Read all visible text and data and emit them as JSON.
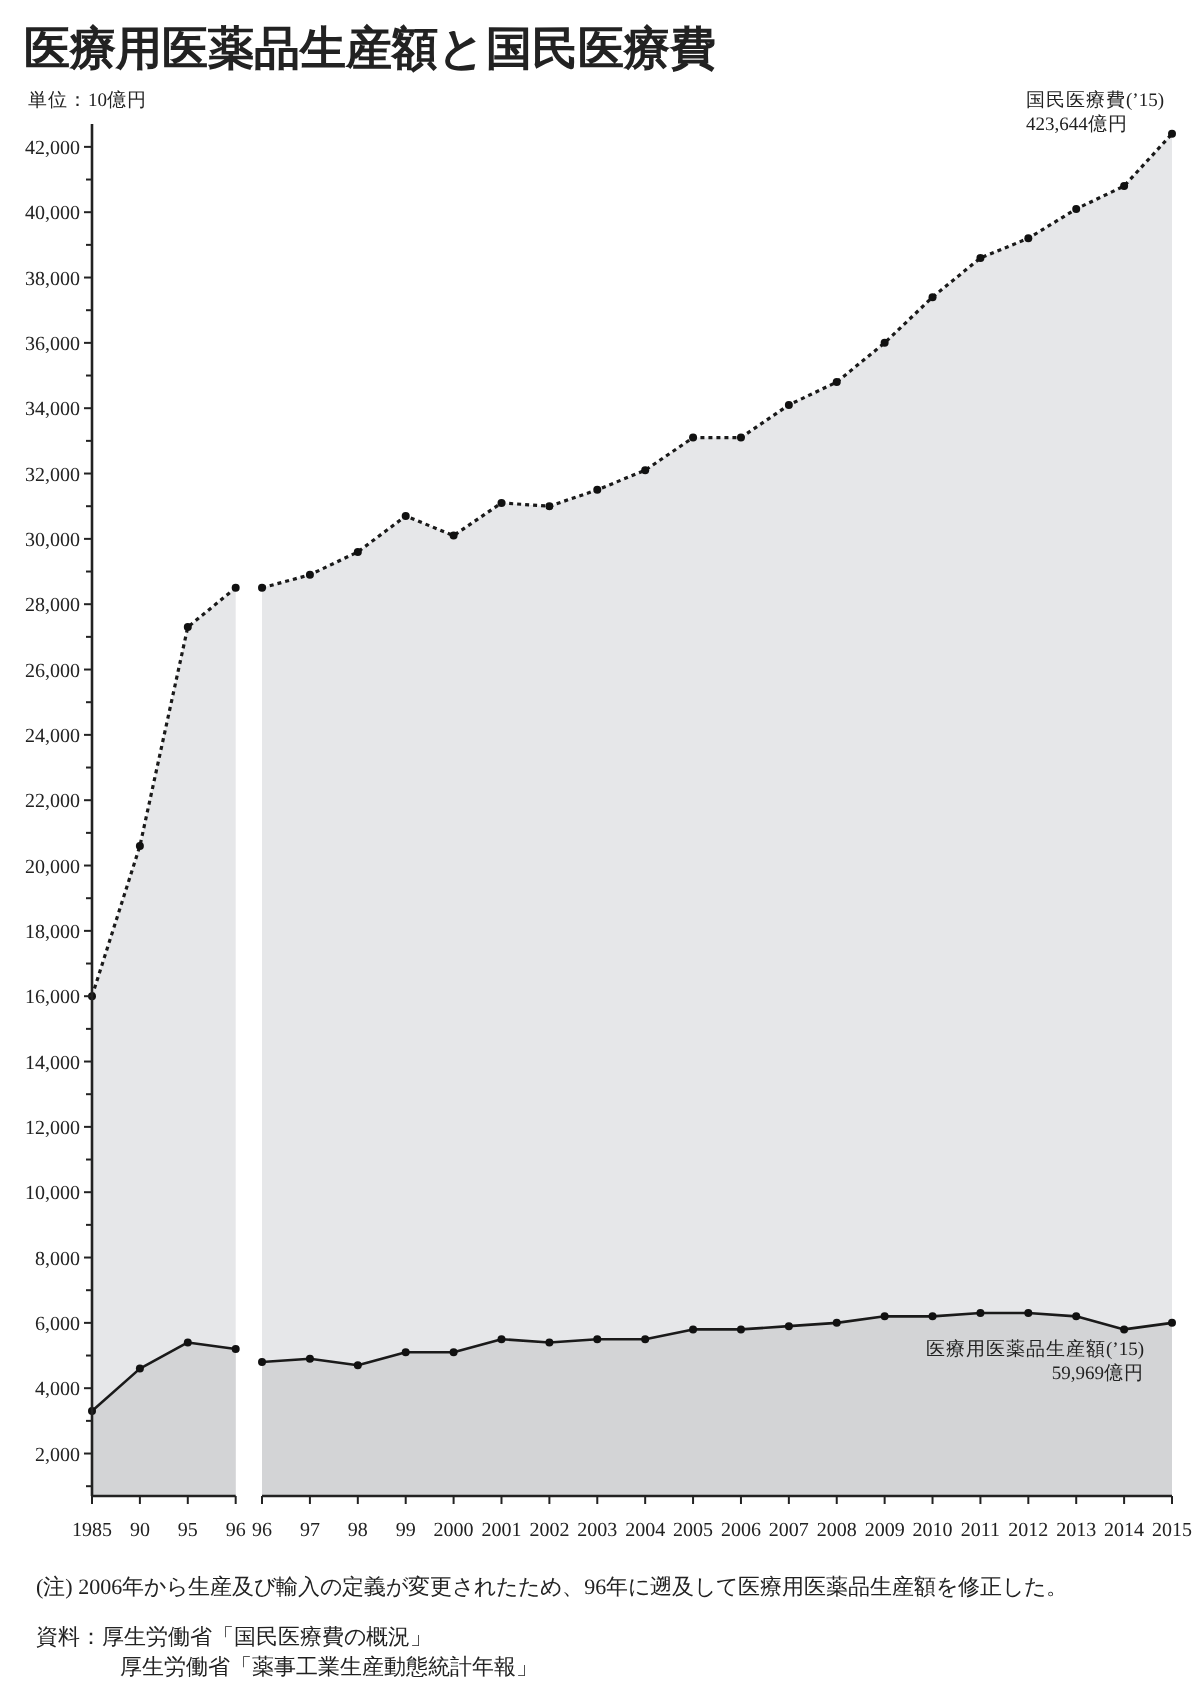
{
  "chart_data": {
    "type": "area",
    "title": "医療用医薬品生産額と国民医療費",
    "ylabel": "単位：10億円",
    "categories": [
      "1985",
      "90",
      "95",
      "96",
      "96",
      "97",
      "98",
      "99",
      "2000",
      "2001",
      "2002",
      "2003",
      "2004",
      "2005",
      "2006",
      "2007",
      "2008",
      "2009",
      "2010",
      "2011",
      "2012",
      "2013",
      "2014",
      "2015"
    ],
    "series": [
      {
        "color": "#e6e7e9",
        "line_style": "dotted",
        "values": [
          16000,
          20600,
          27300,
          28500,
          28500,
          28900,
          29600,
          30700,
          30100,
          31100,
          31000,
          31500,
          32100,
          33100,
          33100,
          34100,
          34800,
          36000,
          37400,
          38600,
          39200,
          40100,
          40800,
          42400
        ]
      },
      {
        "color": "#d3d4d6",
        "line_style": "solid",
        "values": [
          3300,
          4600,
          5400,
          5200,
          4800,
          4900,
          4700,
          5100,
          5100,
          5500,
          5400,
          5500,
          5500,
          5800,
          5800,
          5900,
          6000,
          6200,
          6200,
          6300,
          6300,
          6200,
          5800,
          6000
        ]
      }
    ],
    "ylim": [
      700,
      42700
    ],
    "yticks": [
      {
        "value": 1000,
        "label": null
      },
      {
        "value": 2000,
        "label": "2,000"
      },
      {
        "value": 3000,
        "label": null
      },
      {
        "value": 4000,
        "label": "4,000"
      },
      {
        "value": 5000,
        "label": null
      },
      {
        "value": 6000,
        "label": "6,000"
      },
      {
        "value": 7000,
        "label": null
      },
      {
        "value": 8000,
        "label": "8,000"
      },
      {
        "value": 9000,
        "label": null
      },
      {
        "value": 10000,
        "label": "10,000"
      },
      {
        "value": 11000,
        "label": null
      },
      {
        "value": 12000,
        "label": "12,000"
      },
      {
        "value": 13000,
        "label": null
      },
      {
        "value": 14000,
        "label": "14,000"
      },
      {
        "value": 15000,
        "label": null
      },
      {
        "value": 16000,
        "label": "16,000"
      },
      {
        "value": 17000,
        "label": null
      },
      {
        "value": 18000,
        "label": "18,000"
      },
      {
        "value": 19000,
        "label": null
      },
      {
        "value": 20000,
        "label": "20,000"
      },
      {
        "value": 21000,
        "label": null
      },
      {
        "value": 22000,
        "label": "22,000"
      },
      {
        "value": 23000,
        "label": null
      },
      {
        "value": 24000,
        "label": "24,000"
      },
      {
        "value": 25000,
        "label": null
      },
      {
        "value": 26000,
        "label": "26,000"
      },
      {
        "value": 27000,
        "label": null
      },
      {
        "value": 28000,
        "label": "28,000"
      },
      {
        "value": 29000,
        "label": null
      },
      {
        "value": 30000,
        "label": "30,000"
      },
      {
        "value": 31000,
        "label": null
      },
      {
        "value": 32000,
        "label": "32,000"
      },
      {
        "value": 33000,
        "label": null
      },
      {
        "value": 34000,
        "label": "34,000"
      },
      {
        "value": 35000,
        "label": null
      },
      {
        "value": 36000,
        "label": "36,000"
      },
      {
        "value": 37000,
        "label": null
      },
      {
        "value": 38000,
        "label": "38,000"
      },
      {
        "value": 39000,
        "label": null
      },
      {
        "value": 40000,
        "label": "40,000"
      },
      {
        "value": 41000,
        "label": null
      },
      {
        "value": 42000,
        "label": "42,000"
      }
    ],
    "marker": "circle",
    "annotations": [
      {
        "text": "国民医療費(’15)\n423,644億円",
        "x": "2015",
        "y": 42400
      },
      {
        "text": "医療用医薬品生産額(’15)\n59,969億円",
        "x": "2015",
        "y": 6000
      },
      "(注) 2006年から生産及び輸入の定義が変更されたため、96年に遡及して医療用医薬品生産額を修正した。",
      "資料：厚生労働省「国民医療費の概況」",
      "厚生労働省「薬事工業生産動態統計年報」"
    ]
  }
}
